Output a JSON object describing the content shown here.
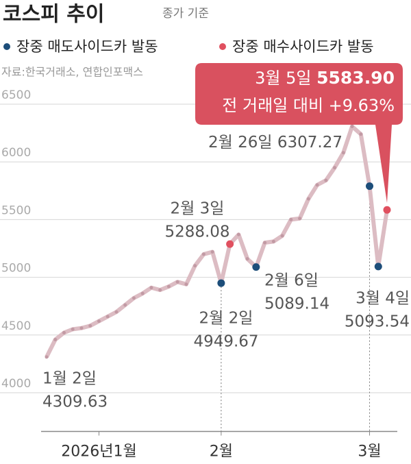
{
  "chart_data": {
    "type": "line",
    "title": "코스피 추이",
    "subtitle": "종가 기준",
    "source": "자료:한국거래소, 연합인포맥스",
    "categories": [
      null,
      null,
      null,
      null,
      null,
      null,
      "2026년1월",
      null,
      null,
      null,
      null,
      null,
      null,
      null,
      null,
      null,
      null,
      null,
      null,
      null,
      "2월",
      null,
      null,
      null,
      null,
      null,
      null,
      null,
      null,
      null,
      null,
      null,
      null,
      null,
      null,
      null,
      null,
      "3월",
      null,
      null
    ],
    "ylim": [
      3700,
      6800
    ],
    "yticks": [
      4000,
      4500,
      5000,
      5500,
      6000,
      6500
    ],
    "grid": true,
    "series": [
      {
        "name": "코스피",
        "color": "#dcbcc3",
        "values": [
          4309.63,
          4460,
          4520,
          4550,
          4560,
          4580,
          4620,
          4660,
          4700,
          4760,
          4820,
          4860,
          4910,
          4890,
          4920,
          4960,
          4940,
          5100,
          5200,
          5220,
          4949.67,
          5288.08,
          5370,
          5160,
          5089.14,
          5300,
          5310,
          5360,
          5500,
          5510,
          5680,
          5800,
          5840,
          5950,
          6080,
          6307.27,
          6240,
          5790,
          5093.54,
          5583.9
        ],
        "value_labels": [
          "4309.63",
          null,
          null,
          null,
          null,
          null,
          null,
          null,
          null,
          null,
          null,
          null,
          null,
          null,
          null,
          null,
          null,
          null,
          null,
          null,
          "4949.67",
          "5288.08",
          null,
          null,
          "5089.14",
          null,
          null,
          null,
          null,
          null,
          null,
          null,
          null,
          null,
          null,
          "6307.27",
          null,
          null,
          "5093.54",
          "5583.90"
        ],
        "date_labels": [
          "1월 2일",
          null,
          null,
          null,
          null,
          null,
          null,
          null,
          null,
          null,
          null,
          null,
          null,
          null,
          null,
          null,
          null,
          null,
          null,
          null,
          "2월 2일",
          "2월 3일",
          null,
          null,
          "2월 6일",
          null,
          null,
          null,
          null,
          null,
          null,
          null,
          null,
          null,
          null,
          "2월 26일",
          null,
          null,
          "3월 4일",
          "3월 5일"
        ]
      },
      {
        "name": "장중 매도사이드카 발동",
        "color": "#1d4e7a",
        "values": [
          null,
          null,
          null,
          null,
          null,
          null,
          null,
          null,
          null,
          null,
          null,
          null,
          null,
          null,
          null,
          null,
          null,
          null,
          null,
          null,
          4949.67,
          null,
          null,
          null,
          5089.14,
          null,
          null,
          null,
          null,
          null,
          null,
          null,
          null,
          null,
          null,
          null,
          null,
          5790,
          5093.54,
          null
        ]
      },
      {
        "name": "장중 매수사이드카 발동",
        "color": "#e0505f",
        "values": [
          null,
          null,
          null,
          null,
          null,
          null,
          null,
          null,
          null,
          null,
          null,
          null,
          null,
          null,
          null,
          null,
          null,
          null,
          null,
          null,
          null,
          5288.08,
          null,
          null,
          null,
          null,
          null,
          null,
          null,
          null,
          null,
          null,
          null,
          null,
          null,
          null,
          null,
          null,
          null,
          5583.9
        ]
      }
    ],
    "callout_note": "전 거래일 대비 +9.63%"
  }
}
